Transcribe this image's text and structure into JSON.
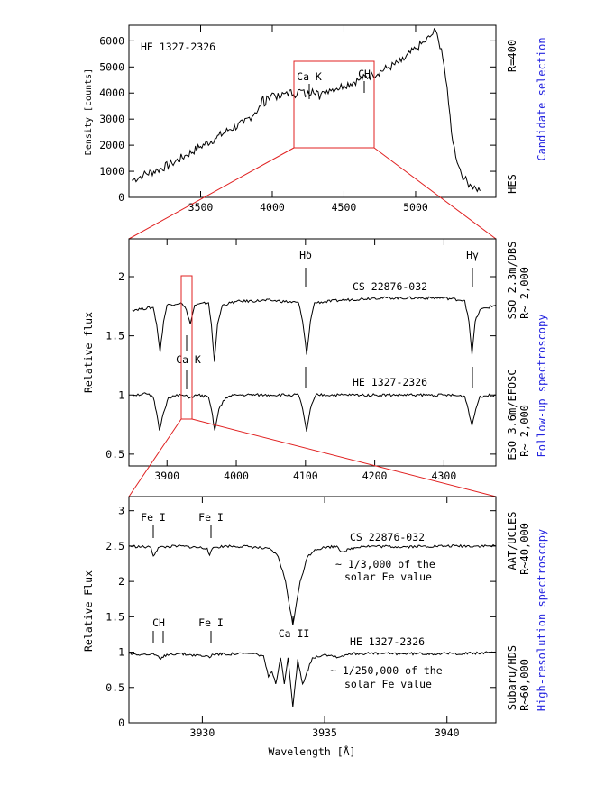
{
  "chart_data": [
    {
      "type": "line",
      "name": "candidate-selection",
      "ylabel": "Density [counts]",
      "xlim": [
        3000,
        5560
      ],
      "ylim": [
        0,
        6600
      ],
      "xticks": [
        3500,
        4000,
        4500,
        5000
      ],
      "yticks": [
        0,
        1000,
        2000,
        3000,
        4000,
        5000,
        6000
      ],
      "series": [
        {
          "name": "HE 1327-2326",
          "x": [
            3020,
            3100,
            3200,
            3300,
            3400,
            3500,
            3600,
            3700,
            3800,
            3880,
            3920,
            3935,
            3945,
            3970,
            4000,
            4050,
            4100,
            4150,
            4200,
            4240,
            4280,
            4320,
            4330,
            4360,
            4400,
            4450,
            4500,
            4600,
            4700,
            4800,
            4900,
            5000,
            5060,
            5100,
            5140,
            5160,
            5180,
            5200,
            5230,
            5260,
            5300,
            5340,
            5380,
            5420,
            5450
          ],
          "y": [
            650,
            860,
            1050,
            1300,
            1620,
            1950,
            2250,
            2600,
            2850,
            3250,
            3500,
            3900,
            3500,
            3850,
            4000,
            3800,
            4050,
            3950,
            4100,
            3900,
            4150,
            4050,
            3750,
            4050,
            4150,
            4180,
            4300,
            4500,
            4700,
            4950,
            5200,
            5700,
            5950,
            6150,
            6400,
            6000,
            5700,
            5000,
            3600,
            2100,
            1200,
            700,
            500,
            350,
            250
          ]
        }
      ],
      "annotations": [
        "Ca K",
        "CH"
      ],
      "title": "HE 1327-2326",
      "right_labels": [
        "R=400",
        "HES"
      ],
      "side_label": "Candidate selection"
    },
    {
      "type": "line",
      "name": "follow-up-spectroscopy",
      "ylabel": "Relative flux",
      "xlim": [
        3845,
        4375
      ],
      "ylim": [
        0.4,
        2.32
      ],
      "xticks": [
        3900,
        4000,
        4100,
        4200,
        4300
      ],
      "yticks": [
        0.5,
        1,
        1.5,
        2
      ],
      "series": [
        {
          "name": "CS 22876-032",
          "x": [
            3850,
            3880,
            3885,
            3890,
            3895,
            3900,
            3920,
            3928,
            3933.7,
            3940,
            3960,
            3964,
            3968.5,
            3973,
            3980,
            4000,
            4050,
            4090,
            4096,
            4101.7,
            4107,
            4113,
            4150,
            4200,
            4300,
            4330,
            4336,
            4340.5,
            4345,
            4352,
            4375
          ],
          "y": [
            1.72,
            1.74,
            1.6,
            1.36,
            1.62,
            1.76,
            1.78,
            1.72,
            1.6,
            1.76,
            1.78,
            1.6,
            1.28,
            1.6,
            1.76,
            1.79,
            1.8,
            1.78,
            1.62,
            1.34,
            1.62,
            1.78,
            1.8,
            1.82,
            1.82,
            1.8,
            1.62,
            1.34,
            1.62,
            1.72,
            1.76
          ]
        },
        {
          "name": "HE 1327-2326",
          "x": [
            3850,
            3870,
            3880,
            3885,
            3889,
            3895,
            3902,
            3920,
            3933.7,
            3945,
            3960,
            3964,
            3969,
            3975,
            3985,
            4000,
            4050,
            4090,
            4096,
            4101.7,
            4107,
            4115,
            4150,
            4200,
            4300,
            4330,
            4335,
            4340.5,
            4346,
            4352,
            4375
          ],
          "y": [
            1.0,
            1.01,
            0.98,
            0.85,
            0.7,
            0.85,
            0.98,
            1.0,
            0.98,
            1.0,
            0.98,
            0.88,
            0.7,
            0.88,
            0.98,
            1.0,
            1.0,
            1.0,
            0.88,
            0.69,
            0.88,
            1.0,
            1.0,
            1.0,
            1.0,
            0.99,
            0.88,
            0.74,
            0.88,
            0.99,
            1.0
          ]
        }
      ],
      "line_markers": [
        {
          "label": "Hδ",
          "x": 4101.7
        },
        {
          "label": "Hγ",
          "x": 4340.5
        },
        {
          "label": "Ca K",
          "x": 3933.7
        }
      ],
      "series_labels": [
        "CS 22876-032",
        "HE 1327-2326"
      ],
      "right_labels": [
        [
          "SSO 2.3m/DBS",
          "R~ 2,000"
        ],
        [
          "ESO 3.6m/EFOSC",
          "R~ 2,000"
        ]
      ],
      "side_label": "Follow-up spectroscopy"
    },
    {
      "type": "line",
      "name": "high-resolution-spectroscopy",
      "xlabel": "Wavelength [Å]",
      "ylabel": "Relative Flux",
      "xlim": [
        3927,
        3942
      ],
      "ylim": [
        0,
        3.2
      ],
      "xticks": [
        3930,
        3935,
        3940
      ],
      "yticks": [
        0,
        0.5,
        1,
        1.5,
        2,
        2.5,
        3
      ],
      "series": [
        {
          "name": "CS 22876-032",
          "x": [
            3927,
            3927.9,
            3928.0,
            3928.2,
            3929,
            3930.2,
            3930.3,
            3930.45,
            3931,
            3932,
            3932.8,
            3933.1,
            3933.4,
            3933.7,
            3934.0,
            3934.3,
            3934.6,
            3935.0,
            3935.5,
            3935.7,
            3936.5,
            3938,
            3940,
            3942
          ],
          "y": [
            2.5,
            2.48,
            2.36,
            2.48,
            2.5,
            2.47,
            2.37,
            2.48,
            2.5,
            2.49,
            2.45,
            2.35,
            2.0,
            1.38,
            2.0,
            2.35,
            2.45,
            2.48,
            2.5,
            2.42,
            2.5,
            2.49,
            2.5,
            2.5
          ]
        },
        {
          "name": "HE 1327-2326",
          "x": [
            3927,
            3928.1,
            3928.3,
            3928.55,
            3929,
            3930.25,
            3930.3,
            3930.4,
            3932,
            3932.5,
            3932.7,
            3932.85,
            3933.0,
            3933.2,
            3933.35,
            3933.5,
            3933.7,
            3933.9,
            3934.1,
            3934.5,
            3935.0,
            3935.6,
            3936,
            3938,
            3940,
            3942
          ],
          "y": [
            0.98,
            0.96,
            0.9,
            0.97,
            0.98,
            0.94,
            0.92,
            0.97,
            0.98,
            0.95,
            0.65,
            0.72,
            0.55,
            0.92,
            0.55,
            0.92,
            0.22,
            0.9,
            0.55,
            0.92,
            0.97,
            0.93,
            0.98,
            0.98,
            0.98,
            0.99
          ]
        }
      ],
      "line_markers": [
        {
          "label": "Fe I",
          "x": 3928.0,
          "row": "top"
        },
        {
          "label": "Fe I",
          "x": 3930.3,
          "row": "top"
        },
        {
          "label": "CH",
          "x": 3928.1,
          "row": "bottom"
        },
        {
          "label": "Fe I",
          "x": 3930.3,
          "row": "bottom"
        },
        {
          "label": "Ca II",
          "x": 3933.7,
          "row": "bottom"
        }
      ],
      "series_labels": [
        "CS 22876-032",
        "HE 1327-2326"
      ],
      "notes": [
        [
          "~ 1/3,000 of the",
          "solar Fe value"
        ],
        [
          "~ 1/250,000 of the",
          "solar Fe value"
        ]
      ],
      "right_labels": [
        [
          "AAT/UCLES",
          "R~40,000"
        ],
        [
          "Subaru/HDS",
          "R~60,000"
        ]
      ],
      "side_label": "High-resolution spectroscopy"
    }
  ],
  "colors": {
    "zoom_box": "#e02020",
    "side_label": "#2525e0",
    "line": "#000000"
  }
}
